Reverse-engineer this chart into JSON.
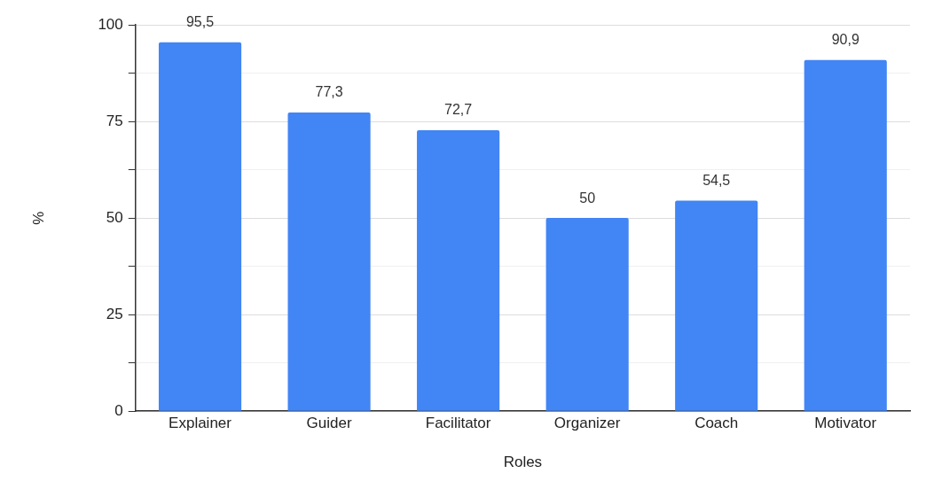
{
  "chart_data": {
    "type": "bar",
    "xlabel": "Roles",
    "ylabel": "%",
    "categories": [
      "Explainer",
      "Guider",
      "Facilitator",
      "Organizer",
      "Coach",
      "Motivator"
    ],
    "values": [
      95.5,
      77.3,
      72.7,
      50,
      54.5,
      90.9
    ],
    "value_labels": [
      "95,5",
      "77,3",
      "72,7",
      "50",
      "54,5",
      "90,9"
    ],
    "color": "#4285f4",
    "ylim": [
      0,
      100
    ],
    "yticks": [
      0,
      {
        "value": 12.5,
        "label": null
      },
      25,
      {
        "value": 37.5,
        "label": null
      },
      50,
      {
        "value": 62.5,
        "label": null
      },
      75,
      {
        "value": 87.5,
        "label": null
      },
      100
    ],
    "grid": "y"
  }
}
